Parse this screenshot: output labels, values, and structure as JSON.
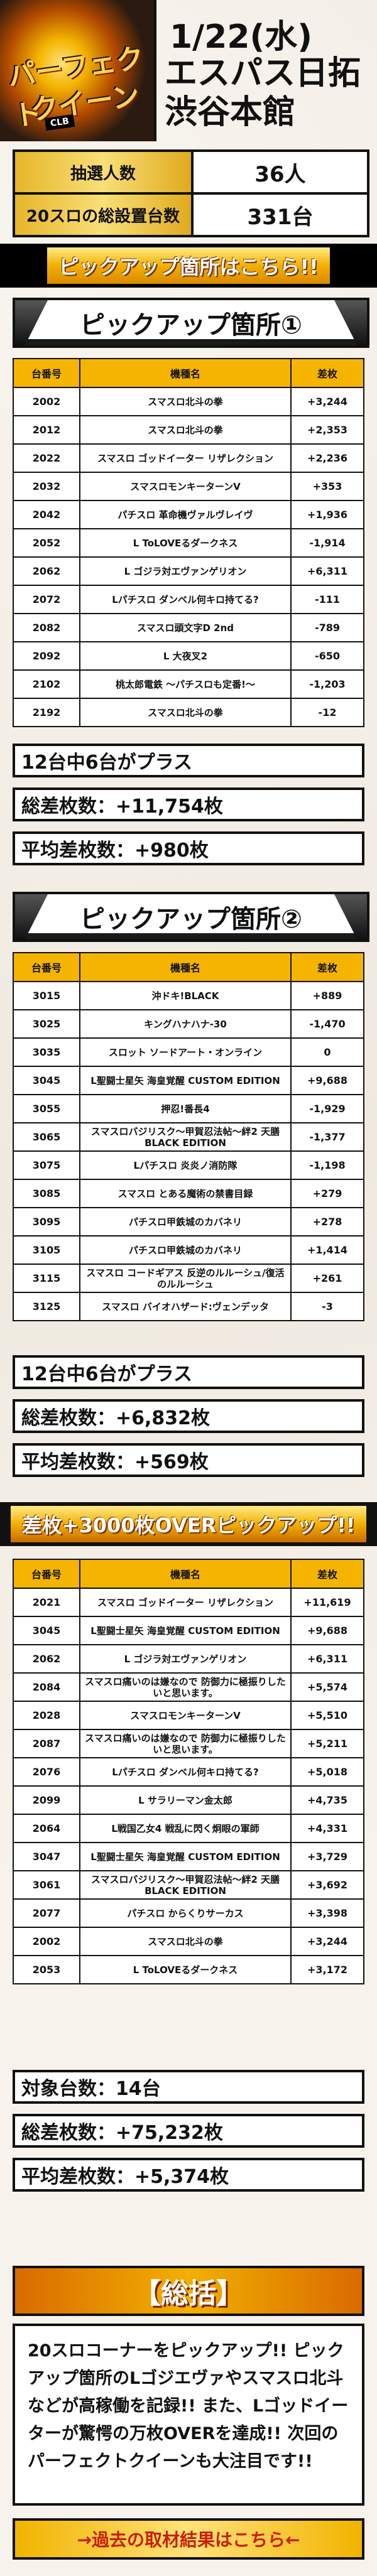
{
  "header": {
    "logo_line1": "パーフェクト",
    "logo_line2": "クイーン",
    "logo_badge": "CLB",
    "date": "1/22(水)",
    "store": "エスパス日拓渋谷本館"
  },
  "stats": [
    {
      "label": "抽選人数",
      "value": "36人"
    },
    {
      "label": "20スロの総設置台数",
      "value": "331台"
    }
  ],
  "banner1": "ピックアップ箇所はこちら!!",
  "section1": {
    "title": "ピックアップ箇所①",
    "headers": [
      "台番号",
      "機種名",
      "差枚"
    ],
    "rows": [
      [
        "2002",
        "スマスロ北斗の拳",
        "+3,244"
      ],
      [
        "2012",
        "スマスロ北斗の拳",
        "+2,353"
      ],
      [
        "2022",
        "スマスロ ゴッドイーター リザレクション",
        "+2,236"
      ],
      [
        "2032",
        "スマスロモンキーターンV",
        "+353"
      ],
      [
        "2042",
        "パチスロ 革命機ヴァルヴレイヴ",
        "+1,936"
      ],
      [
        "2052",
        "L ToLOVEるダークネス",
        "-1,914"
      ],
      [
        "2062",
        "L ゴジラ対エヴァンゲリオン",
        "+6,311"
      ],
      [
        "2072",
        "Lパチスロ ダンベル何キロ持てる?",
        "-111"
      ],
      [
        "2082",
        "スマスロ頭文字D 2nd",
        "-789"
      ],
      [
        "2092",
        "L 大夜叉2",
        "-650"
      ],
      [
        "2102",
        "桃太郎電鉄 〜パチスロも定番!〜",
        "-1,203"
      ],
      [
        "2192",
        "スマスロ北斗の拳",
        "-12"
      ]
    ],
    "summary": [
      "12台中6台がプラス",
      "総差枚数：+11,754枚",
      "平均差枚数：+980枚"
    ]
  },
  "section2": {
    "title": "ピックアップ箇所②",
    "headers": [
      "台番号",
      "機種名",
      "差枚"
    ],
    "rows": [
      [
        "3015",
        "沖ドキ!BLACK",
        "+889"
      ],
      [
        "3025",
        "キングハナハナ-30",
        "-1,470"
      ],
      [
        "3035",
        "スロット ソードアート・オンライン",
        "0"
      ],
      [
        "3045",
        "L聖闘士星矢 海皇覚醒 CUSTOM EDITION",
        "+9,688"
      ],
      [
        "3055",
        "押忍!番長4",
        "-1,929"
      ],
      [
        "3065",
        "スマスロバジリスク〜甲賀忍法帖〜絆2 天膳 BLACK EDITION",
        "-1,377"
      ],
      [
        "3075",
        "Lパチスロ 炎炎ノ消防隊",
        "-1,198"
      ],
      [
        "3085",
        "スマスロ とある魔術の禁書目録",
        "+279"
      ],
      [
        "3095",
        "パチスロ甲鉄城のカバネリ",
        "+278"
      ],
      [
        "3105",
        "パチスロ甲鉄城のカバネリ",
        "+1,414"
      ],
      [
        "3115",
        "スマスロ コードギアス 反逆のルルーシュ/復活のルルーシュ",
        "+261"
      ],
      [
        "3125",
        "スマスロ バイオハザード:ヴェンデッタ",
        "-3"
      ]
    ],
    "summary": [
      "12台中6台がプラス",
      "総差枚数：+6,832枚",
      "平均差枚数：+569枚"
    ]
  },
  "banner2": "差枚+3000枚OVERピックアップ!!",
  "section3": {
    "headers": [
      "台番号",
      "機種名",
      "差枚"
    ],
    "rows": [
      [
        "2021",
        "スマスロ ゴッドイーター リザレクション",
        "+11,619"
      ],
      [
        "3045",
        "L聖闘士星矢 海皇覚醒 CUSTOM EDITION",
        "+9,688"
      ],
      [
        "2062",
        "L ゴジラ対エヴァンゲリオン",
        "+6,311"
      ],
      [
        "2084",
        "スマスロ痛いのは嫌なので 防御力に極振りしたいと思います。",
        "+5,574"
      ],
      [
        "2028",
        "スマスロモンキーターンV",
        "+5,510"
      ],
      [
        "2087",
        "スマスロ痛いのは嫌なので 防御力に極振りしたいと思います。",
        "+5,211"
      ],
      [
        "2076",
        "Lパチスロ ダンベル何キロ持てる?",
        "+5,018"
      ],
      [
        "2099",
        "L サラリーマン金太郎",
        "+4,735"
      ],
      [
        "2064",
        "L戦国乙女4 戦乱に閃く炯眼の軍師",
        "+4,331"
      ],
      [
        "3047",
        "L聖闘士星矢 海皇覚醒 CUSTOM EDITION",
        "+3,729"
      ],
      [
        "3061",
        "スマスロバジリスク〜甲賀忍法帖〜絆2 天膳 BLACK EDITION",
        "+3,692"
      ],
      [
        "2077",
        "パチスロ からくりサーカス",
        "+3,398"
      ],
      [
        "2002",
        "スマスロ北斗の拳",
        "+3,244"
      ],
      [
        "2053",
        "L ToLOVEるダークネス",
        "+3,172"
      ]
    ],
    "summary": [
      "対象台数：14台",
      "総差枚数：+75,232枚",
      "平均差枚数：+5,374枚"
    ]
  },
  "summary_title": "【総括】",
  "summary_text": "20スロコーナーをピックアップ!! ピックアップ箇所のLゴジエヴァやスマスロ北斗などが高稼働を記録!! また、Lゴッドイーターが驚愕の万枚OVERを達成!! 次回のパーフェクトクイーンも大注目です!!",
  "footer_link": "→過去の取材結果はこちら←"
}
